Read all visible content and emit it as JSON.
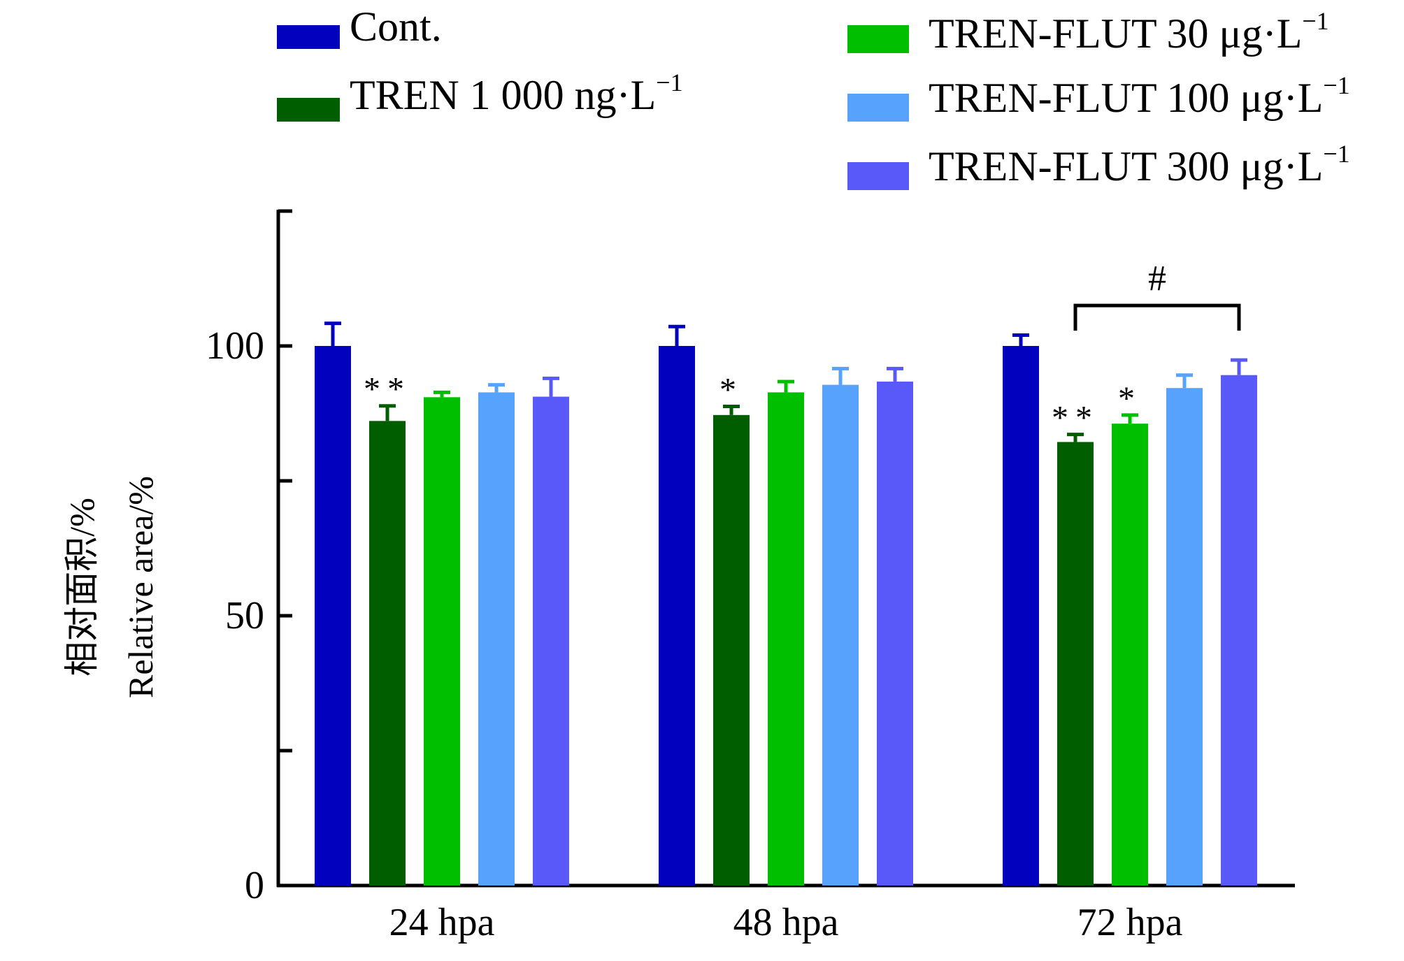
{
  "chart_data": {
    "type": "bar",
    "ylabel_cn": "相对面积/%",
    "ylabel": "Relative area/%",
    "xlabel": "",
    "ylim": [
      0,
      125
    ],
    "yticks_major": [
      0,
      50,
      100
    ],
    "yticks_minor": [
      25,
      75
    ],
    "categories": [
      "24 hpa",
      "48 hpa",
      "72 hpa"
    ],
    "series": [
      {
        "name": "Cont.",
        "unit_sup": "",
        "color": "#0202BE",
        "values": [
          100,
          100,
          100
        ],
        "errors": [
          4.2,
          3.6,
          2.0
        ],
        "annotations": [
          "",
          "",
          ""
        ]
      },
      {
        "name": "TREN 1 000 ng·L",
        "unit_sup": "−1",
        "color": "#005E00",
        "values": [
          86.1,
          87.2,
          82.2
        ],
        "errors": [
          2.8,
          1.6,
          1.4
        ],
        "annotations": [
          "**",
          "*",
          "**"
        ]
      },
      {
        "name": "TREN-FLUT 30 μg·L",
        "unit_sup": "−1",
        "color": "#00BF00",
        "values": [
          90.5,
          91.4,
          85.6
        ],
        "errors": [
          0.9,
          2.0,
          1.6
        ],
        "annotations": [
          "",
          "",
          "*"
        ]
      },
      {
        "name": "TREN-FLUT 100 μg·L",
        "unit_sup": "−1",
        "color": "#56A2FC",
        "values": [
          91.4,
          92.8,
          92.2
        ],
        "errors": [
          1.4,
          3.0,
          2.4
        ],
        "annotations": [
          "",
          "",
          ""
        ]
      },
      {
        "name": "TREN-FLUT 300 μg·L",
        "unit_sup": "−1",
        "color": "#5959FA",
        "values": [
          90.6,
          93.4,
          94.6
        ],
        "errors": [
          3.4,
          2.4,
          2.8
        ],
        "annotations": [
          "",
          "",
          ""
        ]
      }
    ],
    "bracket": {
      "category": "72 hpa",
      "from_series": 1,
      "to_series": 4,
      "y": 107.5,
      "label": "#"
    },
    "legend_placement": "top",
    "grid": false
  }
}
